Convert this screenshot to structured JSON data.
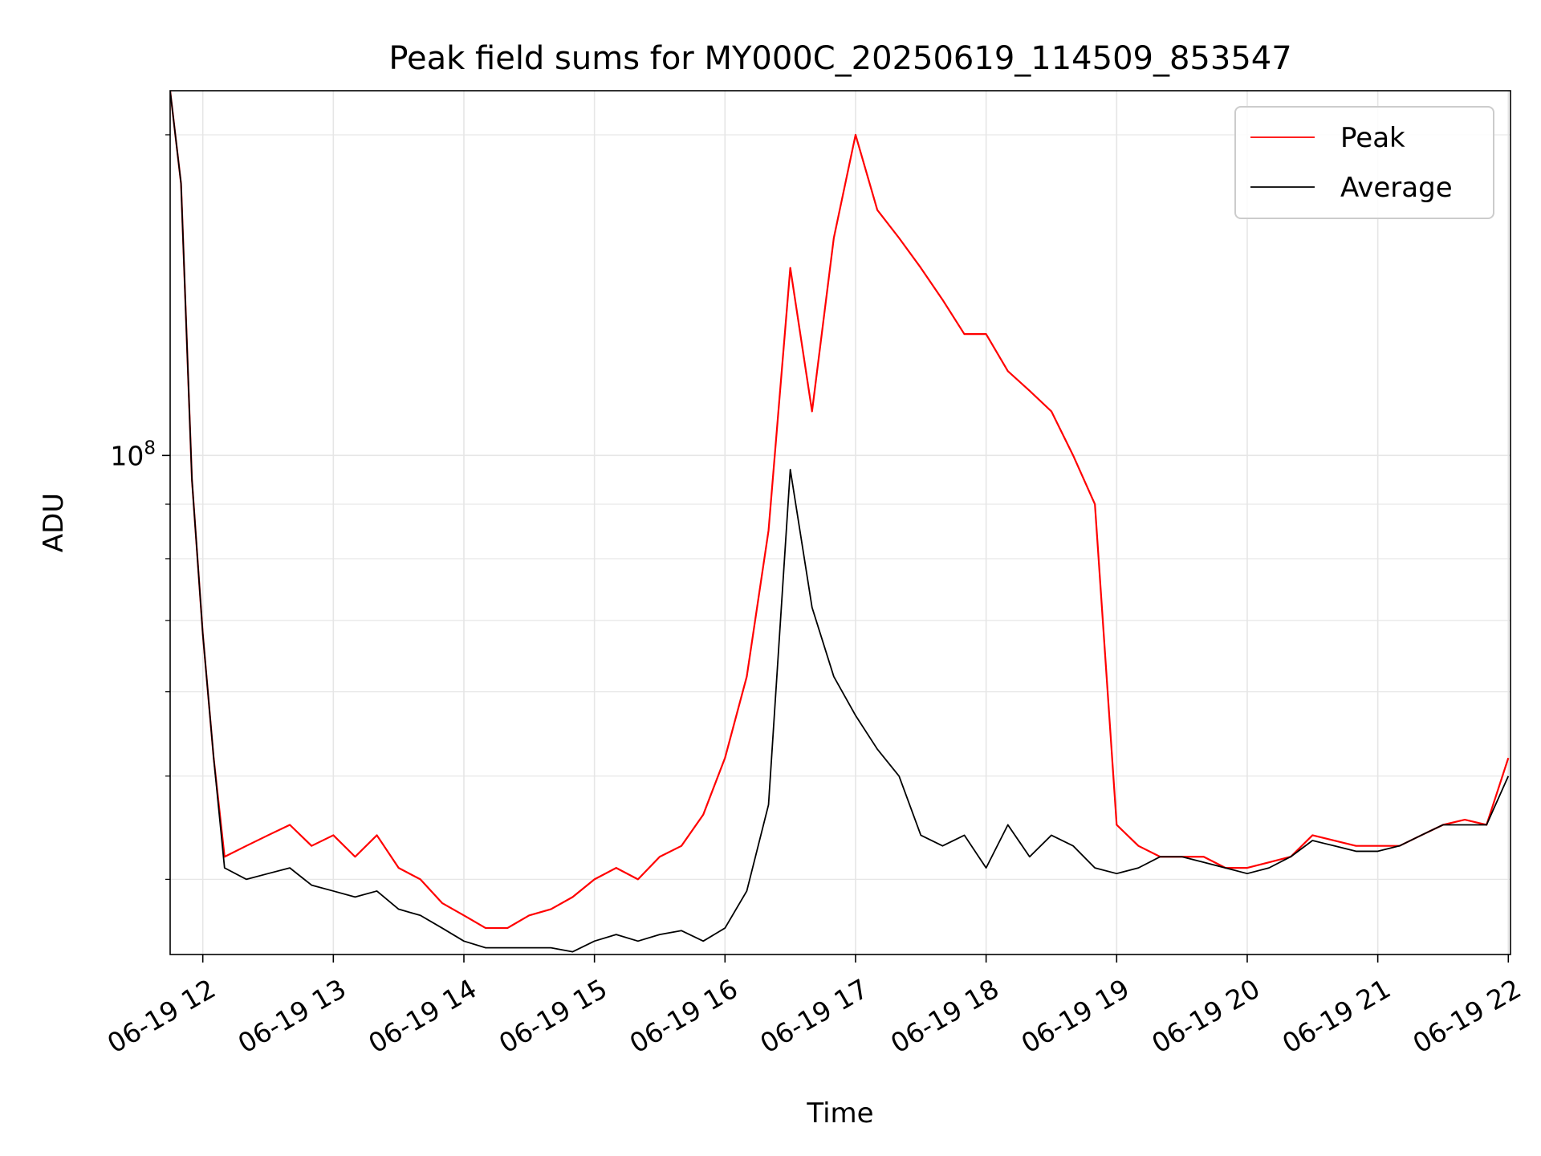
{
  "chart_data": {
    "type": "line",
    "title": "Peak field sums for MY000C_20250619_114509_853547",
    "xlabel": "Time",
    "ylabel": "ADU",
    "x_type": "time",
    "x_range": [
      "2025-06-19T11:45",
      "2025-06-19T22:01"
    ],
    "x_ticks": [
      {
        "value": "2025-06-19T12:00",
        "label": "06-19 12"
      },
      {
        "value": "2025-06-19T13:00",
        "label": "06-19 13"
      },
      {
        "value": "2025-06-19T14:00",
        "label": "06-19 14"
      },
      {
        "value": "2025-06-19T15:00",
        "label": "06-19 15"
      },
      {
        "value": "2025-06-19T16:00",
        "label": "06-19 16"
      },
      {
        "value": "2025-06-19T17:00",
        "label": "06-19 17"
      },
      {
        "value": "2025-06-19T18:00",
        "label": "06-19 18"
      },
      {
        "value": "2025-06-19T19:00",
        "label": "06-19 19"
      },
      {
        "value": "2025-06-19T20:00",
        "label": "06-19 20"
      },
      {
        "value": "2025-06-19T21:00",
        "label": "06-19 21"
      },
      {
        "value": "2025-06-19T22:00",
        "label": "06-19 22"
      }
    ],
    "y_scale": "log",
    "ylim": [
      34000000,
      220000000
    ],
    "y_ticks": [
      {
        "value": 100000000,
        "label": "10^8",
        "base": "10",
        "exp": "8"
      }
    ],
    "grid": true,
    "legend_position": "upper right",
    "colors": {
      "peak": "#ff0000",
      "average": "#000000",
      "grid": "#e6e6e6",
      "legend_border": "#cccccc"
    },
    "series": [
      {
        "name": "Peak",
        "color": "#ff0000",
        "x": [
          "2025-06-19T11:45",
          "2025-06-19T11:50",
          "2025-06-19T11:55",
          "2025-06-19T12:00",
          "2025-06-19T12:05",
          "2025-06-19T12:10",
          "2025-06-19T12:20",
          "2025-06-19T12:30",
          "2025-06-19T12:40",
          "2025-06-19T12:50",
          "2025-06-19T13:00",
          "2025-06-19T13:10",
          "2025-06-19T13:20",
          "2025-06-19T13:30",
          "2025-06-19T13:40",
          "2025-06-19T13:50",
          "2025-06-19T14:00",
          "2025-06-19T14:10",
          "2025-06-19T14:20",
          "2025-06-19T14:30",
          "2025-06-19T14:40",
          "2025-06-19T14:50",
          "2025-06-19T15:00",
          "2025-06-19T15:10",
          "2025-06-19T15:20",
          "2025-06-19T15:30",
          "2025-06-19T15:40",
          "2025-06-19T15:50",
          "2025-06-19T16:00",
          "2025-06-19T16:10",
          "2025-06-19T16:20",
          "2025-06-19T16:30",
          "2025-06-19T16:40",
          "2025-06-19T16:50",
          "2025-06-19T17:00",
          "2025-06-19T17:10",
          "2025-06-19T17:20",
          "2025-06-19T17:30",
          "2025-06-19T17:40",
          "2025-06-19T17:50",
          "2025-06-19T18:00",
          "2025-06-19T18:10",
          "2025-06-19T18:20",
          "2025-06-19T18:30",
          "2025-06-19T18:40",
          "2025-06-19T18:50",
          "2025-06-19T19:00",
          "2025-06-19T19:10",
          "2025-06-19T19:20",
          "2025-06-19T19:30",
          "2025-06-19T19:40",
          "2025-06-19T19:50",
          "2025-06-19T20:00",
          "2025-06-19T20:10",
          "2025-06-19T20:20",
          "2025-06-19T20:30",
          "2025-06-19T20:40",
          "2025-06-19T20:50",
          "2025-06-19T21:00",
          "2025-06-19T21:10",
          "2025-06-19T21:20",
          "2025-06-19T21:30",
          "2025-06-19T21:40",
          "2025-06-19T21:50",
          "2025-06-19T22:00"
        ],
        "y": [
          220000000,
          180000000,
          95000000,
          68000000,
          52000000,
          42000000,
          43000000,
          44000000,
          45000000,
          43000000,
          44000000,
          42000000,
          44000000,
          41000000,
          40000000,
          38000000,
          37000000,
          36000000,
          36000000,
          37000000,
          37500000,
          38500000,
          40000000,
          41000000,
          40000000,
          42000000,
          43000000,
          46000000,
          52000000,
          62000000,
          85000000,
          150000000,
          110000000,
          160000000,
          200000000,
          170000000,
          160000000,
          150000000,
          140000000,
          130000000,
          130000000,
          120000000,
          115000000,
          110000000,
          100000000,
          90000000,
          45000000,
          43000000,
          42000000,
          42000000,
          42000000,
          41000000,
          41000000,
          41500000,
          42000000,
          44000000,
          43500000,
          43000000,
          43000000,
          43000000,
          44000000,
          45000000,
          45500000,
          45000000,
          52000000
        ]
      },
      {
        "name": "Average",
        "color": "#000000",
        "x": [
          "2025-06-19T11:45",
          "2025-06-19T11:50",
          "2025-06-19T11:55",
          "2025-06-19T12:00",
          "2025-06-19T12:05",
          "2025-06-19T12:10",
          "2025-06-19T12:20",
          "2025-06-19T12:30",
          "2025-06-19T12:40",
          "2025-06-19T12:50",
          "2025-06-19T13:00",
          "2025-06-19T13:10",
          "2025-06-19T13:20",
          "2025-06-19T13:30",
          "2025-06-19T13:40",
          "2025-06-19T13:50",
          "2025-06-19T14:00",
          "2025-06-19T14:10",
          "2025-06-19T14:20",
          "2025-06-19T14:30",
          "2025-06-19T14:40",
          "2025-06-19T14:50",
          "2025-06-19T15:00",
          "2025-06-19T15:10",
          "2025-06-19T15:20",
          "2025-06-19T15:30",
          "2025-06-19T15:40",
          "2025-06-19T15:50",
          "2025-06-19T16:00",
          "2025-06-19T16:10",
          "2025-06-19T16:20",
          "2025-06-19T16:30",
          "2025-06-19T16:40",
          "2025-06-19T16:50",
          "2025-06-19T17:00",
          "2025-06-19T17:10",
          "2025-06-19T17:20",
          "2025-06-19T17:30",
          "2025-06-19T17:40",
          "2025-06-19T17:50",
          "2025-06-19T18:00",
          "2025-06-19T18:10",
          "2025-06-19T18:20",
          "2025-06-19T18:30",
          "2025-06-19T18:40",
          "2025-06-19T18:50",
          "2025-06-19T19:00",
          "2025-06-19T19:10",
          "2025-06-19T19:20",
          "2025-06-19T19:30",
          "2025-06-19T19:40",
          "2025-06-19T19:50",
          "2025-06-19T20:00",
          "2025-06-19T20:10",
          "2025-06-19T20:20",
          "2025-06-19T20:30",
          "2025-06-19T20:40",
          "2025-06-19T20:50",
          "2025-06-19T21:00",
          "2025-06-19T21:10",
          "2025-06-19T21:20",
          "2025-06-19T21:30",
          "2025-06-19T21:40",
          "2025-06-19T21:50",
          "2025-06-19T22:00"
        ],
        "y": [
          220000000,
          180000000,
          95000000,
          68000000,
          52000000,
          41000000,
          40000000,
          40500000,
          41000000,
          39500000,
          39000000,
          38500000,
          39000000,
          37500000,
          37000000,
          36000000,
          35000000,
          34500000,
          34500000,
          34500000,
          34500000,
          34200000,
          35000000,
          35500000,
          35000000,
          35500000,
          35800000,
          35000000,
          36000000,
          39000000,
          47000000,
          97000000,
          72000000,
          62000000,
          57000000,
          53000000,
          50000000,
          44000000,
          43000000,
          44000000,
          41000000,
          45000000,
          42000000,
          44000000,
          43000000,
          41000000,
          40500000,
          41000000,
          42000000,
          42000000,
          41500000,
          41000000,
          40500000,
          41000000,
          42000000,
          43500000,
          43000000,
          42500000,
          42500000,
          43000000,
          44000000,
          45000000,
          45000000,
          45000000,
          50000000
        ]
      }
    ]
  },
  "legend": {
    "peak_label": "Peak",
    "average_label": "Average"
  }
}
